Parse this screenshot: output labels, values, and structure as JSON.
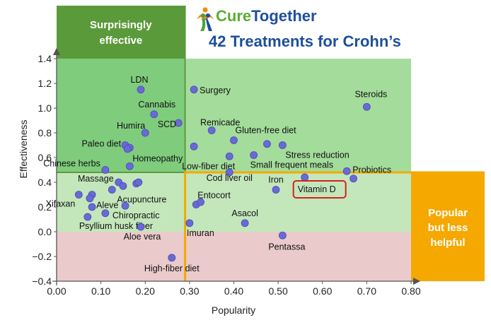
{
  "chart_data": {
    "type": "scatter",
    "title": "42 Treatments for Crohn’s",
    "brand": {
      "cure": "Cure",
      "together": "Together"
    },
    "xlabel": "Popularity",
    "ylabel": "Effectiveness",
    "xlim": [
      0.0,
      0.8
    ],
    "ylim": [
      -0.4,
      1.4
    ],
    "x_ticks": [
      0.0,
      0.1,
      0.2,
      0.3,
      0.4,
      0.5,
      0.6,
      0.7,
      0.8
    ],
    "x_tick_labels": [
      "0.00",
      "0.10",
      "0.20",
      "0.30",
      "0.40",
      "0.50",
      "0.60",
      "0.70",
      "0.80"
    ],
    "y_ticks": [
      -0.4,
      -0.2,
      0.0,
      0.2,
      0.4,
      0.6,
      0.8,
      1.0,
      1.2,
      1.4
    ],
    "y_tick_labels": [
      "−0.4",
      "−0.2",
      "0.0",
      "0.2",
      "0.4",
      "0.6",
      "0.8",
      "1.0",
      "1.2",
      "1.4"
    ],
    "regions": {
      "x_split": 0.29,
      "y_split": 0.48,
      "y_zero": 0.0,
      "surprisingly_effective_label": "Surprisingly effective",
      "popular_but_less_helpful_label": "Popular but less helpful"
    },
    "highlight": "Vitamin D",
    "colors": {
      "point": "#6a6ad4",
      "dark_green_zone": "#7fcc7d",
      "green_zone": "#a4dc9b",
      "light_green_zone": "#c3e7bb",
      "red_zone": "#eacaca",
      "callout_green": "#5b9a3a",
      "callout_orange": "#f5a800",
      "title_blue": "#1c4f9a",
      "brand_green": "#5aae34",
      "brand_blue": "#1f4f9e",
      "highlight_red": "#d81f1f"
    },
    "points": [
      {
        "label": "LDN",
        "x": 0.19,
        "y": 1.15
      },
      {
        "label": "Cannabis",
        "x": 0.22,
        "y": 0.95
      },
      {
        "label": "Humira",
        "x": 0.2,
        "y": 0.8
      },
      {
        "label": "SCD",
        "x": 0.275,
        "y": 0.88
      },
      {
        "label": "Paleo diet",
        "x": 0.155,
        "y": 0.7
      },
      {
        "label": "",
        "x": 0.165,
        "y": 0.68
      },
      {
        "label": "",
        "x": 0.16,
        "y": 0.67
      },
      {
        "label": "Homeopathy",
        "x": 0.165,
        "y": 0.53
      },
      {
        "label": "Chinese herbs",
        "x": 0.11,
        "y": 0.5
      },
      {
        "label": "Surgery",
        "x": 0.31,
        "y": 1.15
      },
      {
        "label": "Remicade",
        "x": 0.35,
        "y": 0.82
      },
      {
        "label": "Gluten-free diet",
        "x": 0.4,
        "y": 0.74
      },
      {
        "label": "",
        "x": 0.475,
        "y": 0.71
      },
      {
        "label": "Stress reduction",
        "x": 0.51,
        "y": 0.7
      },
      {
        "label": "",
        "x": 0.31,
        "y": 0.69
      },
      {
        "label": "Low-fiber diet",
        "x": 0.39,
        "y": 0.61
      },
      {
        "label": "Small frequent meals",
        "x": 0.445,
        "y": 0.62
      },
      {
        "label": "Steroids",
        "x": 0.7,
        "y": 1.01
      },
      {
        "label": "Probiotics",
        "x": 0.655,
        "y": 0.49
      },
      {
        "label": "",
        "x": 0.67,
        "y": 0.43
      },
      {
        "label": "Massage",
        "x": 0.14,
        "y": 0.4
      },
      {
        "label": "",
        "x": 0.15,
        "y": 0.37
      },
      {
        "label": "",
        "x": 0.18,
        "y": 0.39
      },
      {
        "label": "",
        "x": 0.185,
        "y": 0.4
      },
      {
        "label": "Acupuncture",
        "x": 0.125,
        "y": 0.34
      },
      {
        "label": "Aleve",
        "x": 0.08,
        "y": 0.3
      },
      {
        "label": "",
        "x": 0.075,
        "y": 0.27
      },
      {
        "label": "Xifaxan",
        "x": 0.05,
        "y": 0.3
      },
      {
        "label": "",
        "x": 0.08,
        "y": 0.2
      },
      {
        "label": "",
        "x": 0.155,
        "y": 0.21
      },
      {
        "label": "Chiropractic",
        "x": 0.11,
        "y": 0.15
      },
      {
        "label": "Psyllium husk fiber",
        "x": 0.07,
        "y": 0.12
      },
      {
        "label": "Aloe vera",
        "x": 0.19,
        "y": 0.04
      },
      {
        "label": "High-fiber diet",
        "x": 0.26,
        "y": -0.21
      },
      {
        "label": "Cod liver oil",
        "x": 0.39,
        "y": 0.48
      },
      {
        "label": "Entocort",
        "x": 0.315,
        "y": 0.22
      },
      {
        "label": "",
        "x": 0.325,
        "y": 0.24
      },
      {
        "label": "Iron",
        "x": 0.495,
        "y": 0.34
      },
      {
        "label": "Vitamin D",
        "x": 0.56,
        "y": 0.44
      },
      {
        "label": "Imuran",
        "x": 0.3,
        "y": 0.07
      },
      {
        "label": "Asacol",
        "x": 0.425,
        "y": 0.07
      },
      {
        "label": "Pentassa",
        "x": 0.51,
        "y": -0.03
      }
    ]
  }
}
